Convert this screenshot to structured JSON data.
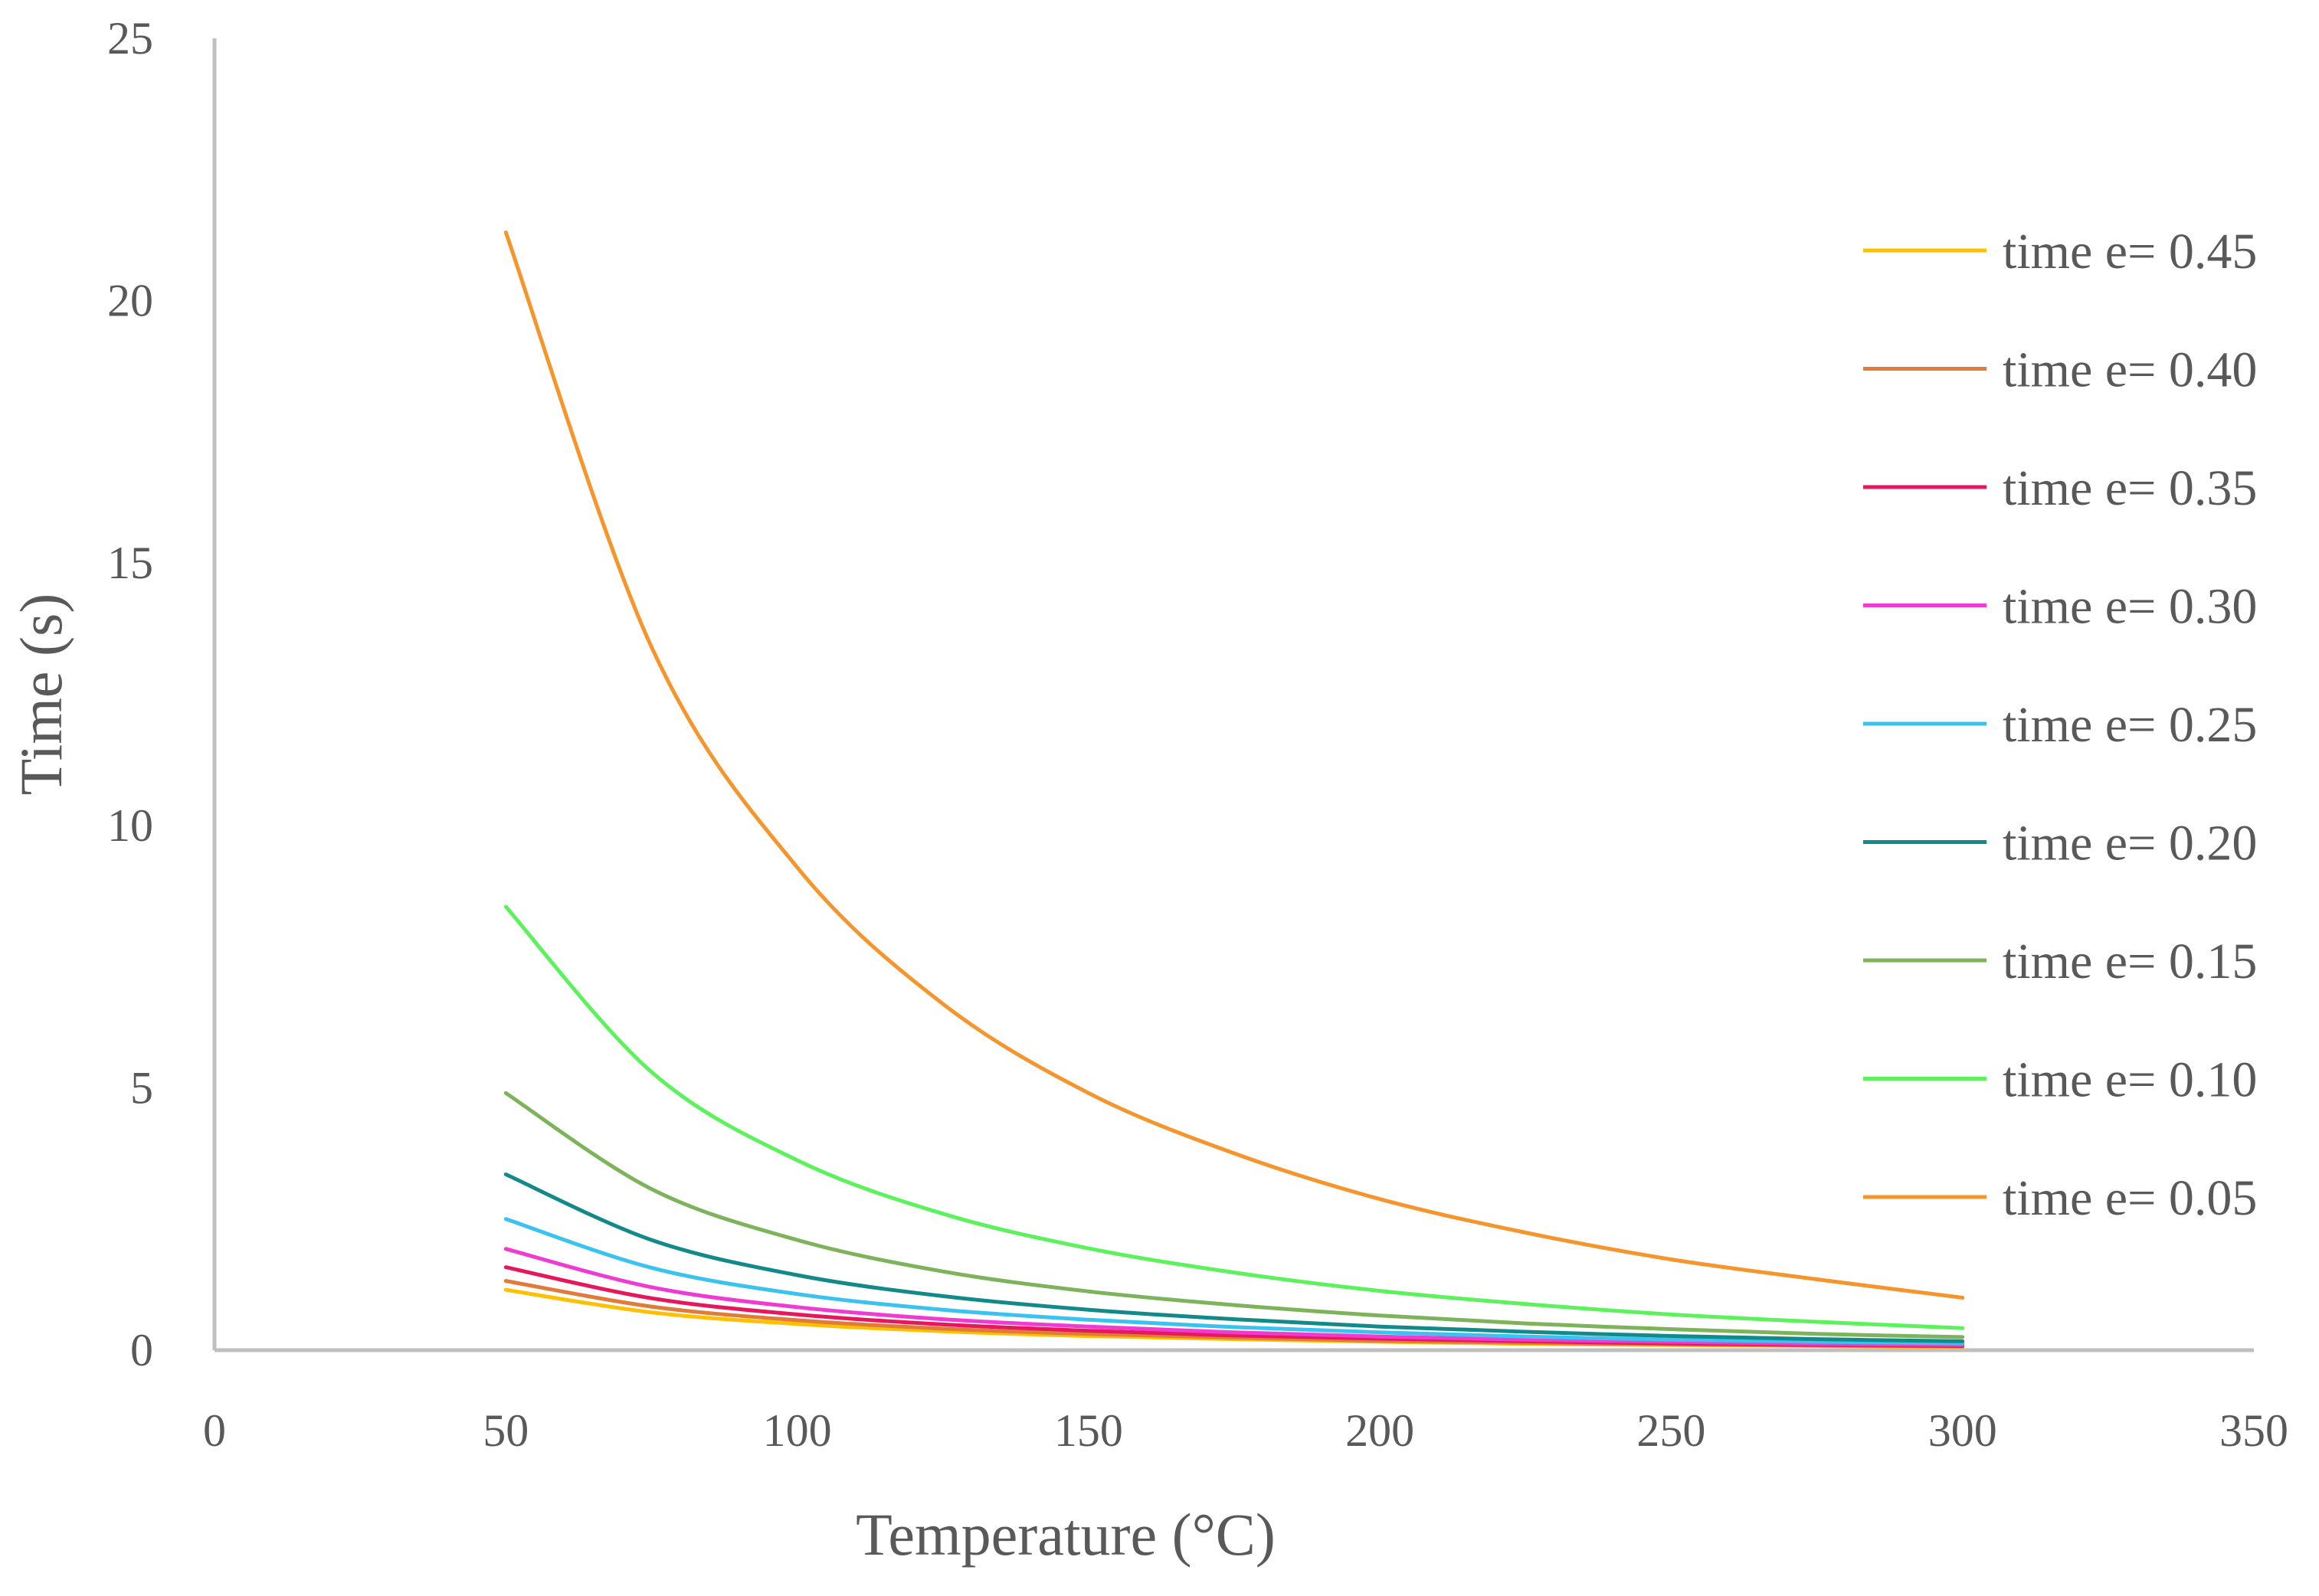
{
  "chart_data": {
    "type": "line",
    "title": "",
    "xlabel": "Temperature (°C)",
    "ylabel": "Time (s)",
    "xlim": [
      0,
      350
    ],
    "ylim": [
      0,
      25
    ],
    "xticks": [
      0,
      50,
      100,
      150,
      200,
      250,
      300,
      350
    ],
    "yticks": [
      0,
      5,
      10,
      15,
      20,
      25
    ],
    "xtick_labels": [
      "0",
      "50",
      "100",
      "150",
      "200",
      "250",
      "300",
      "350"
    ],
    "ytick_labels": [
      "0",
      "5",
      "10",
      "15",
      "20",
      "25"
    ],
    "grid": false,
    "legend_position": "right",
    "x": [
      50,
      75,
      100,
      125,
      150,
      175,
      200,
      225,
      250,
      275,
      300
    ],
    "series": [
      {
        "name": "time e= 0.45",
        "color": "#FFC000",
        "values": [
          1.15,
          0.72,
          0.5,
          0.36,
          0.27,
          0.21,
          0.16,
          0.12,
          0.1,
          0.08,
          0.06
        ]
      },
      {
        "name": "time e= 0.40",
        "color": "#E07B39",
        "values": [
          1.32,
          0.83,
          0.57,
          0.41,
          0.31,
          0.24,
          0.18,
          0.14,
          0.11,
          0.09,
          0.07
        ]
      },
      {
        "name": "time e= 0.35",
        "color": "#E6175C",
        "values": [
          1.58,
          0.99,
          0.68,
          0.49,
          0.37,
          0.28,
          0.22,
          0.17,
          0.13,
          0.1,
          0.08
        ]
      },
      {
        "name": "time e= 0.30",
        "color": "#F03BD2",
        "values": [
          1.93,
          1.2,
          0.82,
          0.59,
          0.45,
          0.34,
          0.26,
          0.2,
          0.16,
          0.12,
          0.1
        ]
      },
      {
        "name": "time e= 0.25",
        "color": "#3BC3F0",
        "values": [
          2.5,
          1.57,
          1.07,
          0.77,
          0.58,
          0.44,
          0.34,
          0.26,
          0.2,
          0.16,
          0.13
        ]
      },
      {
        "name": "time e= 0.20",
        "color": "#138A8A",
        "values": [
          3.35,
          2.1,
          1.43,
          1.03,
          0.77,
          0.59,
          0.45,
          0.35,
          0.27,
          0.21,
          0.17
        ]
      },
      {
        "name": "time e= 0.15",
        "color": "#7DB35A",
        "values": [
          4.9,
          3.07,
          2.1,
          1.5,
          1.12,
          0.86,
          0.66,
          0.51,
          0.4,
          0.31,
          0.25
        ]
      },
      {
        "name": "time e= 0.10",
        "color": "#5CF25C",
        "values": [
          8.45,
          5.3,
          3.62,
          2.6,
          1.94,
          1.48,
          1.13,
          0.88,
          0.68,
          0.54,
          0.42
        ]
      },
      {
        "name": "time e= 0.05",
        "color": "#F5952B",
        "values": [
          21.3,
          13.4,
          9.2,
          6.6,
          4.9,
          3.75,
          2.88,
          2.24,
          1.73,
          1.35,
          1.0
        ]
      }
    ],
    "axis_color": "#BFBFBF"
  }
}
